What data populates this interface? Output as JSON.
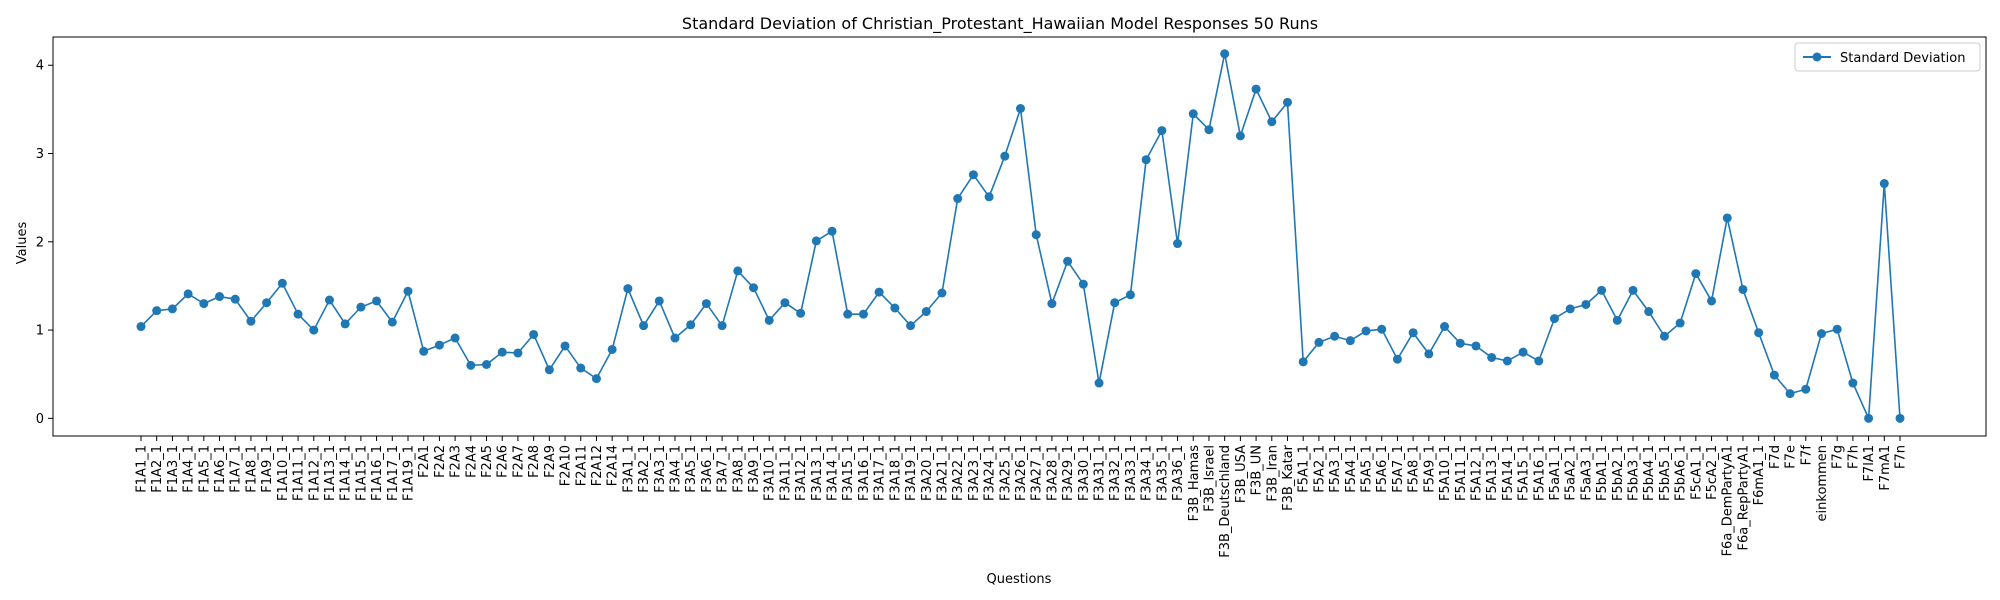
{
  "chart_data": {
    "type": "line",
    "title": "Standard Deviation of Christian_Protestant_Hawaiian Model Responses 50 Runs",
    "xlabel": "Questions",
    "ylabel": "Values",
    "ylim": [
      -0.2,
      4.32
    ],
    "yticks": [
      0,
      1,
      2,
      3,
      4
    ],
    "grid": false,
    "legend_position": "top-right",
    "color": "#1f77b4",
    "series": [
      {
        "name": "Standard Deviation",
        "marker": "circle",
        "values": [
          1.04,
          1.22,
          1.24,
          1.41,
          1.3,
          1.38,
          1.35,
          1.1,
          1.31,
          1.53,
          1.18,
          1.0,
          1.34,
          1.07,
          1.26,
          1.33,
          1.09,
          1.44,
          0.76,
          0.83,
          0.91,
          0.6,
          0.61,
          0.75,
          0.74,
          0.95,
          0.55,
          0.82,
          0.57,
          0.45,
          0.78,
          1.47,
          1.05,
          1.33,
          0.91,
          1.06,
          1.3,
          1.05,
          1.67,
          1.48,
          1.11,
          1.31,
          1.19,
          2.01,
          2.12,
          1.18,
          1.18,
          1.43,
          1.25,
          1.05,
          1.21,
          1.42,
          2.49,
          2.76,
          2.51,
          2.97,
          3.51,
          2.08,
          1.3,
          1.78,
          1.52,
          0.4,
          1.31,
          1.4,
          2.93,
          3.26,
          1.98,
          3.45,
          3.27,
          4.13,
          3.2,
          3.73,
          3.36,
          3.58,
          0.64,
          0.86,
          0.93,
          0.88,
          0.99,
          1.01,
          0.67,
          0.97,
          0.73,
          1.04,
          0.85,
          0.82,
          0.69,
          0.65,
          0.75,
          0.65,
          1.13,
          1.24,
          1.29,
          1.45,
          1.11,
          1.45,
          1.21,
          0.93,
          1.08,
          1.64,
          1.33,
          2.27,
          1.46,
          0.97,
          0.49,
          0.28,
          0.33,
          0.96,
          1.01,
          0.4,
          0.0,
          2.66,
          0.0
        ]
      }
    ],
    "categories": [
      "F1A1_1",
      "F1A2_1",
      "F1A3_1",
      "F1A4_1",
      "F1A5_1",
      "F1A6_1",
      "F1A7_1",
      "F1A8_1",
      "F1A9_1",
      "F1A10_1",
      "F1A11_1",
      "F1A12_1",
      "F1A13_1",
      "F1A14_1",
      "F1A15_1",
      "F1A16_1",
      "F1A17_1",
      "F1A19_1",
      "F2A1",
      "F2A2",
      "F2A3",
      "F2A4",
      "F2A5",
      "F2A6",
      "F2A7",
      "F2A8",
      "F2A9",
      "F2A10",
      "F2A11",
      "F2A12",
      "F2A14",
      "F3A1_1",
      "F3A2_1",
      "F3A3_1",
      "F3A4_1",
      "F3A5_1",
      "F3A6_1",
      "F3A7_1",
      "F3A8_1",
      "F3A9_1",
      "F3A10_1",
      "F3A11_1",
      "F3A12_1",
      "F3A13_1",
      "F3A14_1",
      "F3A15_1",
      "F3A16_1",
      "F3A17_1",
      "F3A18_1",
      "F3A19_1",
      "F3A20_1",
      "F3A21_1",
      "F3A22_1",
      "F3A23_1",
      "F3A24_1",
      "F3A25_1",
      "F3A26_1",
      "F3A27_1",
      "F3A28_1",
      "F3A29_1",
      "F3A30_1",
      "F3A31_1",
      "F3A32_1",
      "F3A33_1",
      "F3A34_1",
      "F3A35_1",
      "F3A36_1",
      "F3B_Hamas",
      "F3B_Israel",
      "F3B_Deutschland",
      "F3B_USA",
      "F3B_UN",
      "F3B_Iran",
      "F3B_Katar",
      "F5A1_1",
      "F5A2_1",
      "F5A3_1",
      "F5A4_1",
      "F5A5_1",
      "F5A6_1",
      "F5A7_1",
      "F5A8_1",
      "F5A9_1",
      "F5A10_1",
      "F5A11_1",
      "F5A12_1",
      "F5A13_1",
      "F5A14_1",
      "F5A15_1",
      "F5A16_1",
      "F5aA1_1",
      "F5aA2_1",
      "F5aA3_1",
      "F5bA1_1",
      "F5bA2_1",
      "F5bA3_1",
      "F5bA4_1",
      "F5bA5_1",
      "F5bA6_1",
      "F5cA1_1",
      "F5cA2_1",
      "F6a_DemPartyA1",
      "F6a_RepPartyA1",
      "F6mA1_1",
      "F7d",
      "F7e",
      "F7f",
      "einkommen",
      "F7g",
      "F7h",
      "F7lA1",
      "F7mA1",
      "F7n"
    ]
  }
}
